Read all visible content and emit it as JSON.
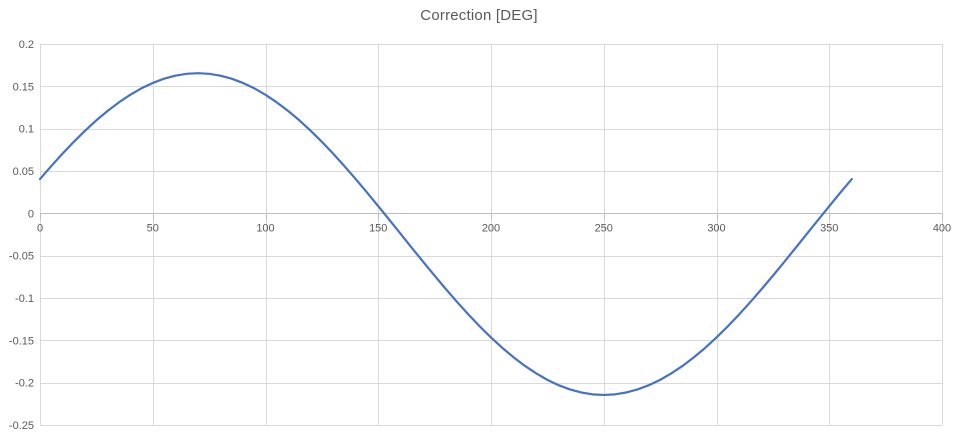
{
  "title": "Correction [DEG]",
  "colors": {
    "line": "#4472C4",
    "gridline": "#D9D9D9",
    "axis_line": "#BFBFBF",
    "text": "#595959",
    "background": "#FFFFFF"
  },
  "chart_data": {
    "type": "line",
    "title": "Correction [DEG]",
    "xlabel": "",
    "ylabel": "",
    "xlim": [
      0,
      400
    ],
    "ylim": [
      -0.25,
      0.2
    ],
    "grid": true,
    "legend_visible": false,
    "x_ticks": [
      0,
      50,
      100,
      150,
      200,
      250,
      300,
      350,
      400
    ],
    "x_tick_labels": [
      "0",
      "50",
      "100",
      "150",
      "200",
      "250",
      "300",
      "350",
      "400"
    ],
    "y_ticks": [
      0.2,
      0.15,
      0.1,
      0.05,
      0,
      -0.05,
      -0.1,
      -0.15,
      -0.2,
      -0.25
    ],
    "y_tick_labels": [
      "0.2",
      "0.15",
      "0.1",
      "0.05",
      "0",
      "-0.05",
      "-0.1",
      "-0.15",
      "-0.2",
      "-0.25"
    ],
    "series": [
      {
        "name": "Correction",
        "x": [
          0,
          5,
          10,
          15,
          20,
          25,
          30,
          35,
          40,
          45,
          50,
          55,
          60,
          65,
          70,
          75,
          80,
          85,
          90,
          95,
          100,
          105,
          110,
          115,
          120,
          125,
          130,
          135,
          140,
          145,
          150,
          155,
          160,
          165,
          170,
          175,
          180,
          185,
          190,
          195,
          200,
          205,
          210,
          215,
          220,
          225,
          230,
          235,
          240,
          245,
          250,
          255,
          260,
          265,
          270,
          275,
          280,
          285,
          290,
          295,
          300,
          305,
          310,
          315,
          320,
          325,
          330,
          335,
          340,
          345,
          350,
          355,
          360
        ],
        "y": [
          0.0405,
          0.0558,
          0.0705,
          0.0845,
          0.0976,
          0.1099,
          0.121,
          0.1311,
          0.14,
          0.1477,
          0.154,
          0.159,
          0.1626,
          0.1648,
          0.1655,
          0.1648,
          0.1626,
          0.159,
          0.154,
          0.1477,
          0.14,
          0.1311,
          0.121,
          0.1099,
          0.0976,
          0.0845,
          0.0705,
          0.0558,
          0.0405,
          0.0247,
          0.0085,
          -0.0079,
          -0.0245,
          -0.0411,
          -0.0575,
          -0.0737,
          -0.0895,
          -0.1048,
          -0.1195,
          -0.1335,
          -0.1466,
          -0.1589,
          -0.17,
          -0.1801,
          -0.189,
          -0.1967,
          -0.203,
          -0.208,
          -0.2116,
          -0.2138,
          -0.2145,
          -0.2138,
          -0.2116,
          -0.208,
          -0.203,
          -0.1967,
          -0.189,
          -0.1801,
          -0.17,
          -0.1589,
          -0.1466,
          -0.1335,
          -0.1195,
          -0.1048,
          -0.0895,
          -0.0737,
          -0.0575,
          -0.0411,
          -0.0245,
          -0.0079,
          0.0085,
          0.0247,
          0.0405
        ]
      }
    ]
  }
}
